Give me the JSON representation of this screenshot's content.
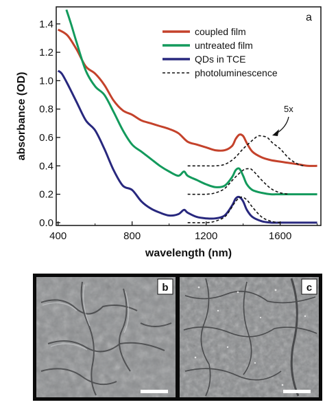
{
  "chart_data": {
    "type": "line",
    "panel_label": "a",
    "xlabel": "wavelength (nm)",
    "ylabel": "absorbance (OD)",
    "xlim": [
      390,
      1820
    ],
    "ylim": [
      -0.02,
      1.52
    ],
    "x_ticks": [
      400,
      800,
      1200,
      1600
    ],
    "x_tick_labels": [
      "400",
      "800",
      "1200",
      "1600"
    ],
    "y_ticks": [
      0.0,
      0.2,
      0.4,
      0.6,
      0.8,
      1.0,
      1.2,
      1.4
    ],
    "y_tick_labels": [
      "0.0",
      "0.2",
      "0.4",
      "0.6",
      "0.8",
      "1.0",
      "1.2",
      "1.4"
    ],
    "legend_position": "top-right",
    "annotation": "5x",
    "colors": {
      "coupled": "#c4422b",
      "untreated": "#139a5c",
      "qds": "#28287e",
      "photoluminescence": "#111111"
    },
    "series": [
      {
        "name": "coupled film",
        "style": "solid",
        "x": [
          400,
          450,
          500,
          550,
          600,
          650,
          700,
          750,
          800,
          850,
          900,
          950,
          1000,
          1050,
          1100,
          1150,
          1200,
          1250,
          1300,
          1340,
          1360,
          1380,
          1400,
          1420,
          1450,
          1500,
          1550,
          1600,
          1650,
          1700,
          1750,
          1800
        ],
        "values": [
          1.36,
          1.32,
          1.22,
          1.1,
          1.05,
          0.97,
          0.86,
          0.79,
          0.76,
          0.72,
          0.7,
          0.68,
          0.66,
          0.63,
          0.57,
          0.55,
          0.53,
          0.51,
          0.51,
          0.54,
          0.59,
          0.62,
          0.61,
          0.56,
          0.5,
          0.46,
          0.44,
          0.43,
          0.42,
          0.41,
          0.4,
          0.4
        ]
      },
      {
        "name": "untreated film",
        "style": "solid",
        "x": [
          445,
          470,
          500,
          550,
          600,
          650,
          700,
          750,
          800,
          850,
          900,
          950,
          1000,
          1050,
          1080,
          1100,
          1150,
          1200,
          1250,
          1300,
          1340,
          1360,
          1380,
          1400,
          1420,
          1450,
          1500,
          1550,
          1600,
          1700,
          1800
        ],
        "values": [
          1.5,
          1.4,
          1.27,
          1.07,
          0.96,
          0.9,
          0.78,
          0.65,
          0.55,
          0.5,
          0.45,
          0.4,
          0.36,
          0.33,
          0.36,
          0.33,
          0.3,
          0.27,
          0.25,
          0.26,
          0.32,
          0.37,
          0.38,
          0.33,
          0.27,
          0.23,
          0.21,
          0.2,
          0.2,
          0.2,
          0.2
        ]
      },
      {
        "name": "QDs in TCE",
        "style": "solid",
        "x": [
          400,
          420,
          450,
          500,
          550,
          600,
          650,
          700,
          750,
          800,
          850,
          900,
          950,
          1000,
          1050,
          1080,
          1100,
          1150,
          1200,
          1250,
          1300,
          1340,
          1360,
          1380,
          1400,
          1420,
          1450,
          1500,
          1550,
          1600,
          1700,
          1800
        ],
        "values": [
          1.07,
          1.05,
          0.98,
          0.85,
          0.72,
          0.65,
          0.52,
          0.37,
          0.26,
          0.23,
          0.15,
          0.1,
          0.07,
          0.05,
          0.06,
          0.09,
          0.07,
          0.04,
          0.03,
          0.03,
          0.05,
          0.12,
          0.17,
          0.18,
          0.15,
          0.09,
          0.04,
          0.01,
          0.0,
          0.0,
          0.0,
          0.0
        ]
      },
      {
        "name": "photoluminescence",
        "style": "dashed",
        "traces": [
          {
            "x": [
              1100,
              1150,
              1200,
              1250,
              1300,
              1350,
              1400,
              1450,
              1480,
              1500,
              1530,
              1560,
              1600,
              1650,
              1700,
              1730
            ],
            "values": [
              0.4,
              0.4,
              0.4,
              0.4,
              0.41,
              0.45,
              0.52,
              0.58,
              0.61,
              0.61,
              0.6,
              0.56,
              0.52,
              0.45,
              0.41,
              0.4
            ]
          },
          {
            "x": [
              1100,
              1200,
              1250,
              1300,
              1350,
              1400,
              1430,
              1450,
              1500,
              1550,
              1600,
              1650
            ],
            "values": [
              0.2,
              0.2,
              0.21,
              0.24,
              0.31,
              0.37,
              0.38,
              0.37,
              0.3,
              0.24,
              0.21,
              0.2
            ]
          },
          {
            "x": [
              1100,
              1200,
              1250,
              1300,
              1330,
              1360,
              1390,
              1420,
              1450,
              1500,
              1550,
              1600
            ],
            "values": [
              0.0,
              0.0,
              0.01,
              0.04,
              0.09,
              0.15,
              0.18,
              0.16,
              0.11,
              0.04,
              0.01,
              0.0
            ]
          }
        ]
      }
    ]
  },
  "micrographs": {
    "frame_color": "#0a0a0a",
    "panels": [
      {
        "label": "b",
        "tone": "#8d8f91"
      },
      {
        "label": "c",
        "tone": "#8a8c8e"
      }
    ]
  }
}
